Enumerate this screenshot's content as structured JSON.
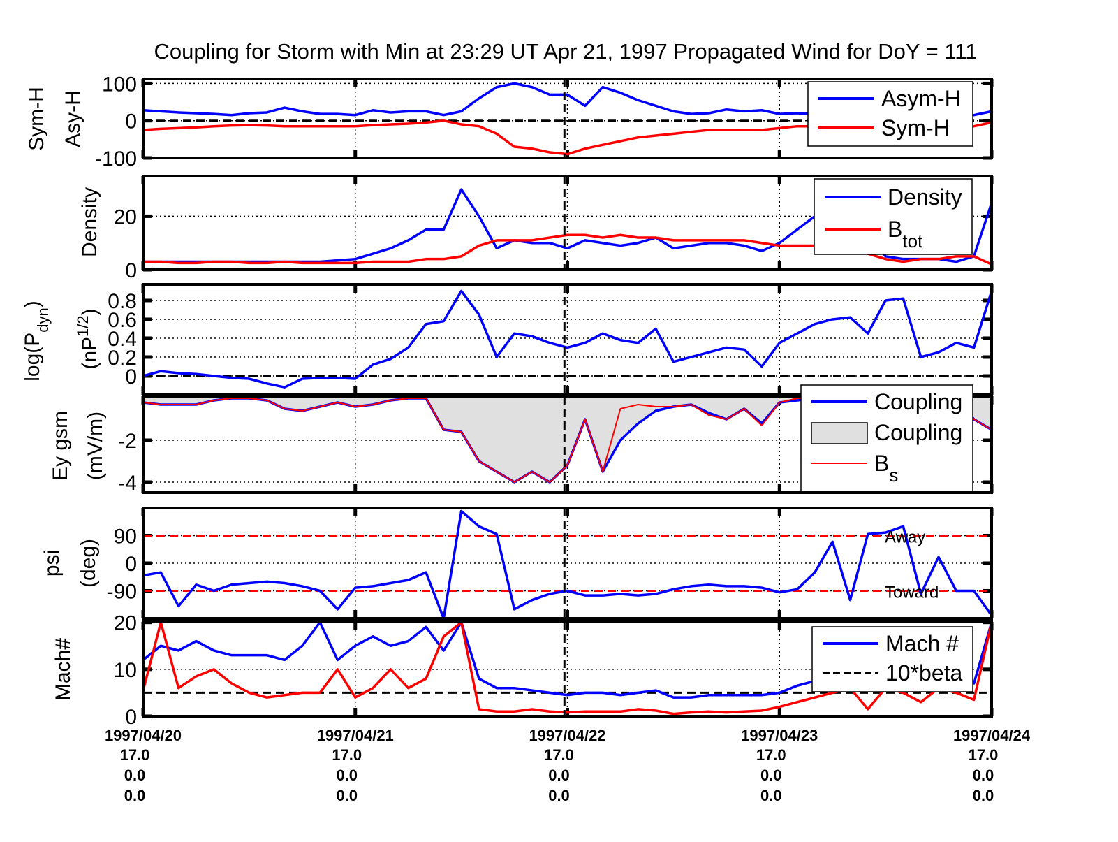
{
  "chart_data": {
    "type": "line",
    "title": "Coupling for Storm with Min at 23:29 UT Apr 21, 1997  Propagated Wind for DoY = 111",
    "x": {
      "times": [
        "1997-04-20T17:00",
        "1997-04-20T19:00",
        "1997-04-20T21:00",
        "1997-04-20T23:00",
        "1997-04-21T01:00",
        "1997-04-21T03:00",
        "1997-04-21T05:00",
        "1997-04-21T07:00",
        "1997-04-21T09:00",
        "1997-04-21T11:00",
        "1997-04-21T13:00",
        "1997-04-21T15:00",
        "1997-04-21T17:00",
        "1997-04-21T19:00",
        "1997-04-21T21:00",
        "1997-04-21T23:00",
        "1997-04-22T01:00",
        "1997-04-22T03:00",
        "1997-04-22T05:00",
        "1997-04-22T07:00",
        "1997-04-22T09:00",
        "1997-04-22T11:00",
        "1997-04-22T13:00",
        "1997-04-22T15:00",
        "1997-04-22T17:00",
        "1997-04-22T19:00",
        "1997-04-22T21:00",
        "1997-04-22T23:00",
        "1997-04-23T01:00",
        "1997-04-23T03:00",
        "1997-04-23T05:00",
        "1997-04-23T07:00",
        "1997-04-23T09:00",
        "1997-04-23T11:00",
        "1997-04-23T13:00",
        "1997-04-23T15:00",
        "1997-04-23T17:00",
        "1997-04-23T19:00",
        "1997-04-23T21:00",
        "1997-04-23T23:00",
        "1997-04-24T01:00",
        "1997-04-24T03:00",
        "1997-04-24T05:00",
        "1997-04-24T07:00",
        "1997-04-24T09:00",
        "1997-04-24T11:00",
        "1997-04-24T13:00",
        "1997-04-24T15:00",
        "1997-04-24T17:00"
      ],
      "xlim": [
        "1997-04-20T17:00",
        "1997-04-24T17:00"
      ],
      "ticks": [
        {
          "time": "1997-04-20T17:00",
          "label": "1997/04/20",
          "rows": [
            "17.0",
            "0.0",
            "0.0"
          ]
        },
        {
          "time": "1997-04-21T17:00",
          "label": "1997/04/21",
          "rows": [
            "17.0",
            "0.0",
            "0.0"
          ]
        },
        {
          "time": "1997-04-22T17:00",
          "label": "1997/04/22",
          "rows": [
            "17.0",
            "0.0",
            "0.0"
          ]
        },
        {
          "time": "1997-04-23T17:00",
          "label": "1997/04/23",
          "rows": [
            "17.0",
            "0.0",
            "0.0"
          ]
        },
        {
          "time": "1997-04-24T17:00",
          "label": "1997/04/24",
          "rows": [
            "17.0",
            "0.0",
            "0.0"
          ]
        }
      ],
      "marker_time": "1997-04-22T16:40",
      "grid": true
    },
    "panels": [
      {
        "id": "symh",
        "ylabel": [
          "Sym-H",
          "Asy-H"
        ],
        "ylim": [
          -100,
          112
        ],
        "yticks": [
          {
            "v": 100,
            "label": "100"
          },
          {
            "v": 0,
            "label": "0"
          },
          {
            "v": -100,
            "label": "-100"
          }
        ],
        "hlines": [
          {
            "v": 0,
            "color": "#000000",
            "style": "dashed"
          }
        ],
        "series": [
          {
            "name": "Asym-H",
            "color": "#0000ff",
            "values": [
              28,
              25,
              22,
              20,
              18,
              15,
              20,
              22,
              35,
              25,
              18,
              18,
              15,
              28,
              22,
              25,
              25,
              15,
              25,
              60,
              90,
              100,
              90,
              70,
              70,
              40,
              90,
              75,
              55,
              40,
              25,
              18,
              20,
              30,
              25,
              28,
              18,
              20,
              18,
              15,
              15,
              15,
              15,
              15,
              15,
              15,
              15,
              15,
              25
            ]
          },
          {
            "name": "Sym-H",
            "color": "#ff0000",
            "values": [
              -25,
              -22,
              -20,
              -18,
              -15,
              -13,
              -12,
              -13,
              -15,
              -15,
              -15,
              -15,
              -15,
              -12,
              -10,
              -8,
              -5,
              0,
              -10,
              -15,
              -35,
              -70,
              -75,
              -85,
              -90,
              -75,
              -65,
              -55,
              -45,
              -40,
              -35,
              -30,
              -25,
              -25,
              -25,
              -25,
              -20,
              -15,
              -15,
              -15,
              -15,
              -15,
              -15,
              -15,
              -15,
              -15,
              -15,
              -15,
              -5
            ]
          }
        ],
        "legend": [
          {
            "label": "Asym-H",
            "color": "#0000ff",
            "kind": "line"
          },
          {
            "label": "Sym-H",
            "color": "#ff0000",
            "kind": "line"
          }
        ]
      },
      {
        "id": "density",
        "ylabel": [
          "Density"
        ],
        "ylim": [
          0,
          35
        ],
        "yticks": [
          {
            "v": 20,
            "label": "20"
          },
          {
            "v": 0,
            "label": "0"
          }
        ],
        "hlines": [],
        "series": [
          {
            "name": "Density",
            "color": "#0000ff",
            "values": [
              3,
              3,
              3,
              3,
              3,
              3,
              3,
              3,
              3,
              3,
              3,
              3.5,
              4,
              6,
              8,
              11,
              15,
              15,
              30,
              20,
              8,
              11,
              10,
              10,
              8,
              11,
              10,
              9,
              10,
              12,
              8,
              9,
              10,
              10,
              9,
              7,
              10,
              15,
              20,
              20,
              18,
              15,
              5,
              4,
              4,
              4,
              3,
              5,
              25
            ]
          },
          {
            "name": "Btot",
            "color": "#ff0000",
            "values": [
              3,
              3,
              2.5,
              2.5,
              3,
              3,
              2.5,
              2.5,
              3,
              2.5,
              2.5,
              2.5,
              2.5,
              3,
              3,
              3,
              4,
              4,
              5,
              9,
              11,
              11,
              11,
              12,
              13,
              13,
              12,
              13,
              12,
              12,
              11,
              11,
              11,
              11,
              11,
              10,
              9,
              9,
              9,
              9,
              8,
              6,
              4,
              3,
              4,
              4,
              5,
              5,
              2
            ]
          }
        ],
        "legend": [
          {
            "label": "Density",
            "sub": "",
            "color": "#0000ff",
            "kind": "line"
          },
          {
            "label": "B",
            "sub": "tot",
            "color": "#ff0000",
            "kind": "line"
          }
        ]
      },
      {
        "id": "pdyn",
        "ylabel": [
          "log(P",
          "dyn",
          ")",
          "(nP",
          "1/2",
          ")"
        ],
        "ylim": [
          -0.2,
          0.97
        ],
        "yticks": [
          {
            "v": 0.8,
            "label": "0.8"
          },
          {
            "v": 0.6,
            "label": "0.6"
          },
          {
            "v": 0.4,
            "label": "0.4"
          },
          {
            "v": 0.2,
            "label": "0.2"
          },
          {
            "v": 0,
            "label": "0"
          }
        ],
        "hlines": [
          {
            "v": 0,
            "color": "#000000",
            "style": "dashed"
          }
        ],
        "series": [
          {
            "color": "#0000ff",
            "values": [
              0,
              0.05,
              0.03,
              0.02,
              0,
              -0.02,
              -0.03,
              -0.08,
              -0.12,
              -0.03,
              -0.02,
              -0.02,
              -0.03,
              0.12,
              0.18,
              0.3,
              0.55,
              0.58,
              0.9,
              0.65,
              0.2,
              0.45,
              0.42,
              0.35,
              0.3,
              0.35,
              0.45,
              0.38,
              0.35,
              0.5,
              0.15,
              0.2,
              0.25,
              0.3,
              0.28,
              0.1,
              0.35,
              0.45,
              0.55,
              0.6,
              0.62,
              0.45,
              0.8,
              0.82,
              0.2,
              0.25,
              0.35,
              0.3,
              0.9
            ]
          }
        ],
        "legend": []
      },
      {
        "id": "ey",
        "ylabel": [
          "Ey gsm",
          "(mV/m)"
        ],
        "ylim": [
          -4.5,
          0.1
        ],
        "yticks": [
          {
            "v": -2,
            "label": "-2"
          },
          {
            "v": -4,
            "label": "-4"
          }
        ],
        "hlines": [],
        "fill": {
          "name": "Coupling",
          "color": "#e0e0e0"
        },
        "series": [
          {
            "name": "Coupling",
            "color": "#0000ff",
            "values": [
              -0.2,
              -0.3,
              -0.3,
              -0.3,
              -0.1,
              0,
              0,
              -0.1,
              -0.5,
              -0.6,
              -0.4,
              -0.2,
              -0.4,
              -0.3,
              -0.1,
              0,
              0,
              -1.5,
              -1.6,
              -3,
              -3.5,
              -4,
              -3.5,
              -4,
              -3.2,
              -1,
              -3.5,
              -2,
              -1.2,
              -0.6,
              -0.4,
              -0.3,
              -0.7,
              -1,
              -0.5,
              -1.2,
              -0.2,
              -0.1,
              0,
              0,
              0,
              0,
              0,
              0,
              0,
              0,
              0,
              -1,
              -1.5
            ]
          },
          {
            "name": "Bs",
            "color": "#ff0000",
            "values": [
              -0.2,
              -0.3,
              -0.3,
              -0.3,
              -0.1,
              0,
              0,
              -0.1,
              -0.5,
              -0.6,
              -0.4,
              -0.2,
              -0.4,
              -0.3,
              -0.1,
              0,
              0,
              -1.5,
              -1.6,
              -3,
              -3.5,
              -4,
              -3.5,
              -4,
              -3.2,
              -1,
              -3.5,
              -0.5,
              -0.3,
              -0.4,
              -0.4,
              -0.3,
              -0.8,
              -1,
              -0.5,
              -1.3,
              -0.2,
              0,
              0,
              0,
              0,
              0,
              0,
              0,
              0,
              0,
              0,
              -1,
              -1.5
            ]
          }
        ],
        "legend": [
          {
            "label": "Coupling",
            "sub": "",
            "color": "#0000ff",
            "kind": "line"
          },
          {
            "label": "Coupling",
            "sub": "",
            "color": "#e0e0e0",
            "kind": "patch"
          },
          {
            "label": "B",
            "sub": "s",
            "color": "#ff0000",
            "kind": "thin"
          }
        ]
      },
      {
        "id": "psi",
        "ylabel": [
          "psi",
          "(deg)"
        ],
        "ylim": [
          -180,
          180
        ],
        "yticks": [
          {
            "v": 90,
            "label": "90"
          },
          {
            "v": 0,
            "label": "0"
          },
          {
            "v": -90,
            "label": "-90"
          }
        ],
        "hlines": [
          {
            "v": 90,
            "color": "#ff0000",
            "style": "dashed"
          },
          {
            "v": -90,
            "color": "#ff0000",
            "style": "dashed"
          }
        ],
        "annotations": [
          {
            "v": 90,
            "text": "Away"
          },
          {
            "v": -90,
            "text": "Toward"
          }
        ],
        "series": [
          {
            "color": "#0000ff",
            "values": [
              -40,
              -30,
              -140,
              -70,
              -90,
              -70,
              -65,
              -60,
              -65,
              -75,
              -90,
              -150,
              -80,
              -75,
              -65,
              -55,
              -30,
              -180,
              170,
              120,
              95,
              -150,
              -120,
              -100,
              -90,
              -105,
              -105,
              -100,
              -105,
              -100,
              -85,
              -75,
              -70,
              -75,
              -75,
              -80,
              -95,
              -85,
              -30,
              70,
              -120,
              95,
              100,
              120,
              -100,
              20,
              -90,
              -90,
              -170
            ]
          }
        ],
        "legend": []
      },
      {
        "id": "mach",
        "ylabel": [
          "Mach#"
        ],
        "ylim": [
          0,
          20.1
        ],
        "yticks": [
          {
            "v": 20,
            "label": "20"
          },
          {
            "v": 10,
            "label": "10"
          },
          {
            "v": 0,
            "label": "0"
          }
        ],
        "hlines": [
          {
            "v": 5,
            "color": "#000000",
            "style": "dashed"
          }
        ],
        "series": [
          {
            "name": "Mach #",
            "color": "#0000ff",
            "values": [
              12,
              15,
              14,
              16,
              14,
              13,
              13,
              13,
              12,
              15,
              20,
              12,
              15,
              17,
              15,
              16,
              19,
              14,
              20,
              8,
              6,
              6,
              5.5,
              5,
              4.5,
              5,
              5,
              4.5,
              5,
              5.5,
              4,
              4,
              4.5,
              4.5,
              4.5,
              4.5,
              5,
              6.5,
              7.5,
              7,
              7,
              7,
              7,
              7,
              7,
              7,
              7,
              7,
              20
            ]
          },
          {
            "color": "#ff0000",
            "values": [
              5.5,
              20,
              6,
              8.5,
              10,
              7,
              5,
              4,
              4.5,
              5,
              5,
              10,
              4,
              6,
              10,
              6,
              8,
              17,
              20,
              1.5,
              1,
              1,
              1.5,
              1,
              0.8,
              1,
              1,
              1,
              1.5,
              1.2,
              0.5,
              0.8,
              1,
              0.8,
              1,
              1.2,
              2,
              3,
              4,
              5,
              6,
              1.5,
              6,
              5,
              3,
              6,
              5,
              3.5,
              20
            ]
          }
        ],
        "legend": [
          {
            "label": "Mach #",
            "color": "#0000ff",
            "kind": "line"
          },
          {
            "label": "10*beta",
            "color": "#000000",
            "kind": "dashed"
          }
        ]
      }
    ]
  }
}
